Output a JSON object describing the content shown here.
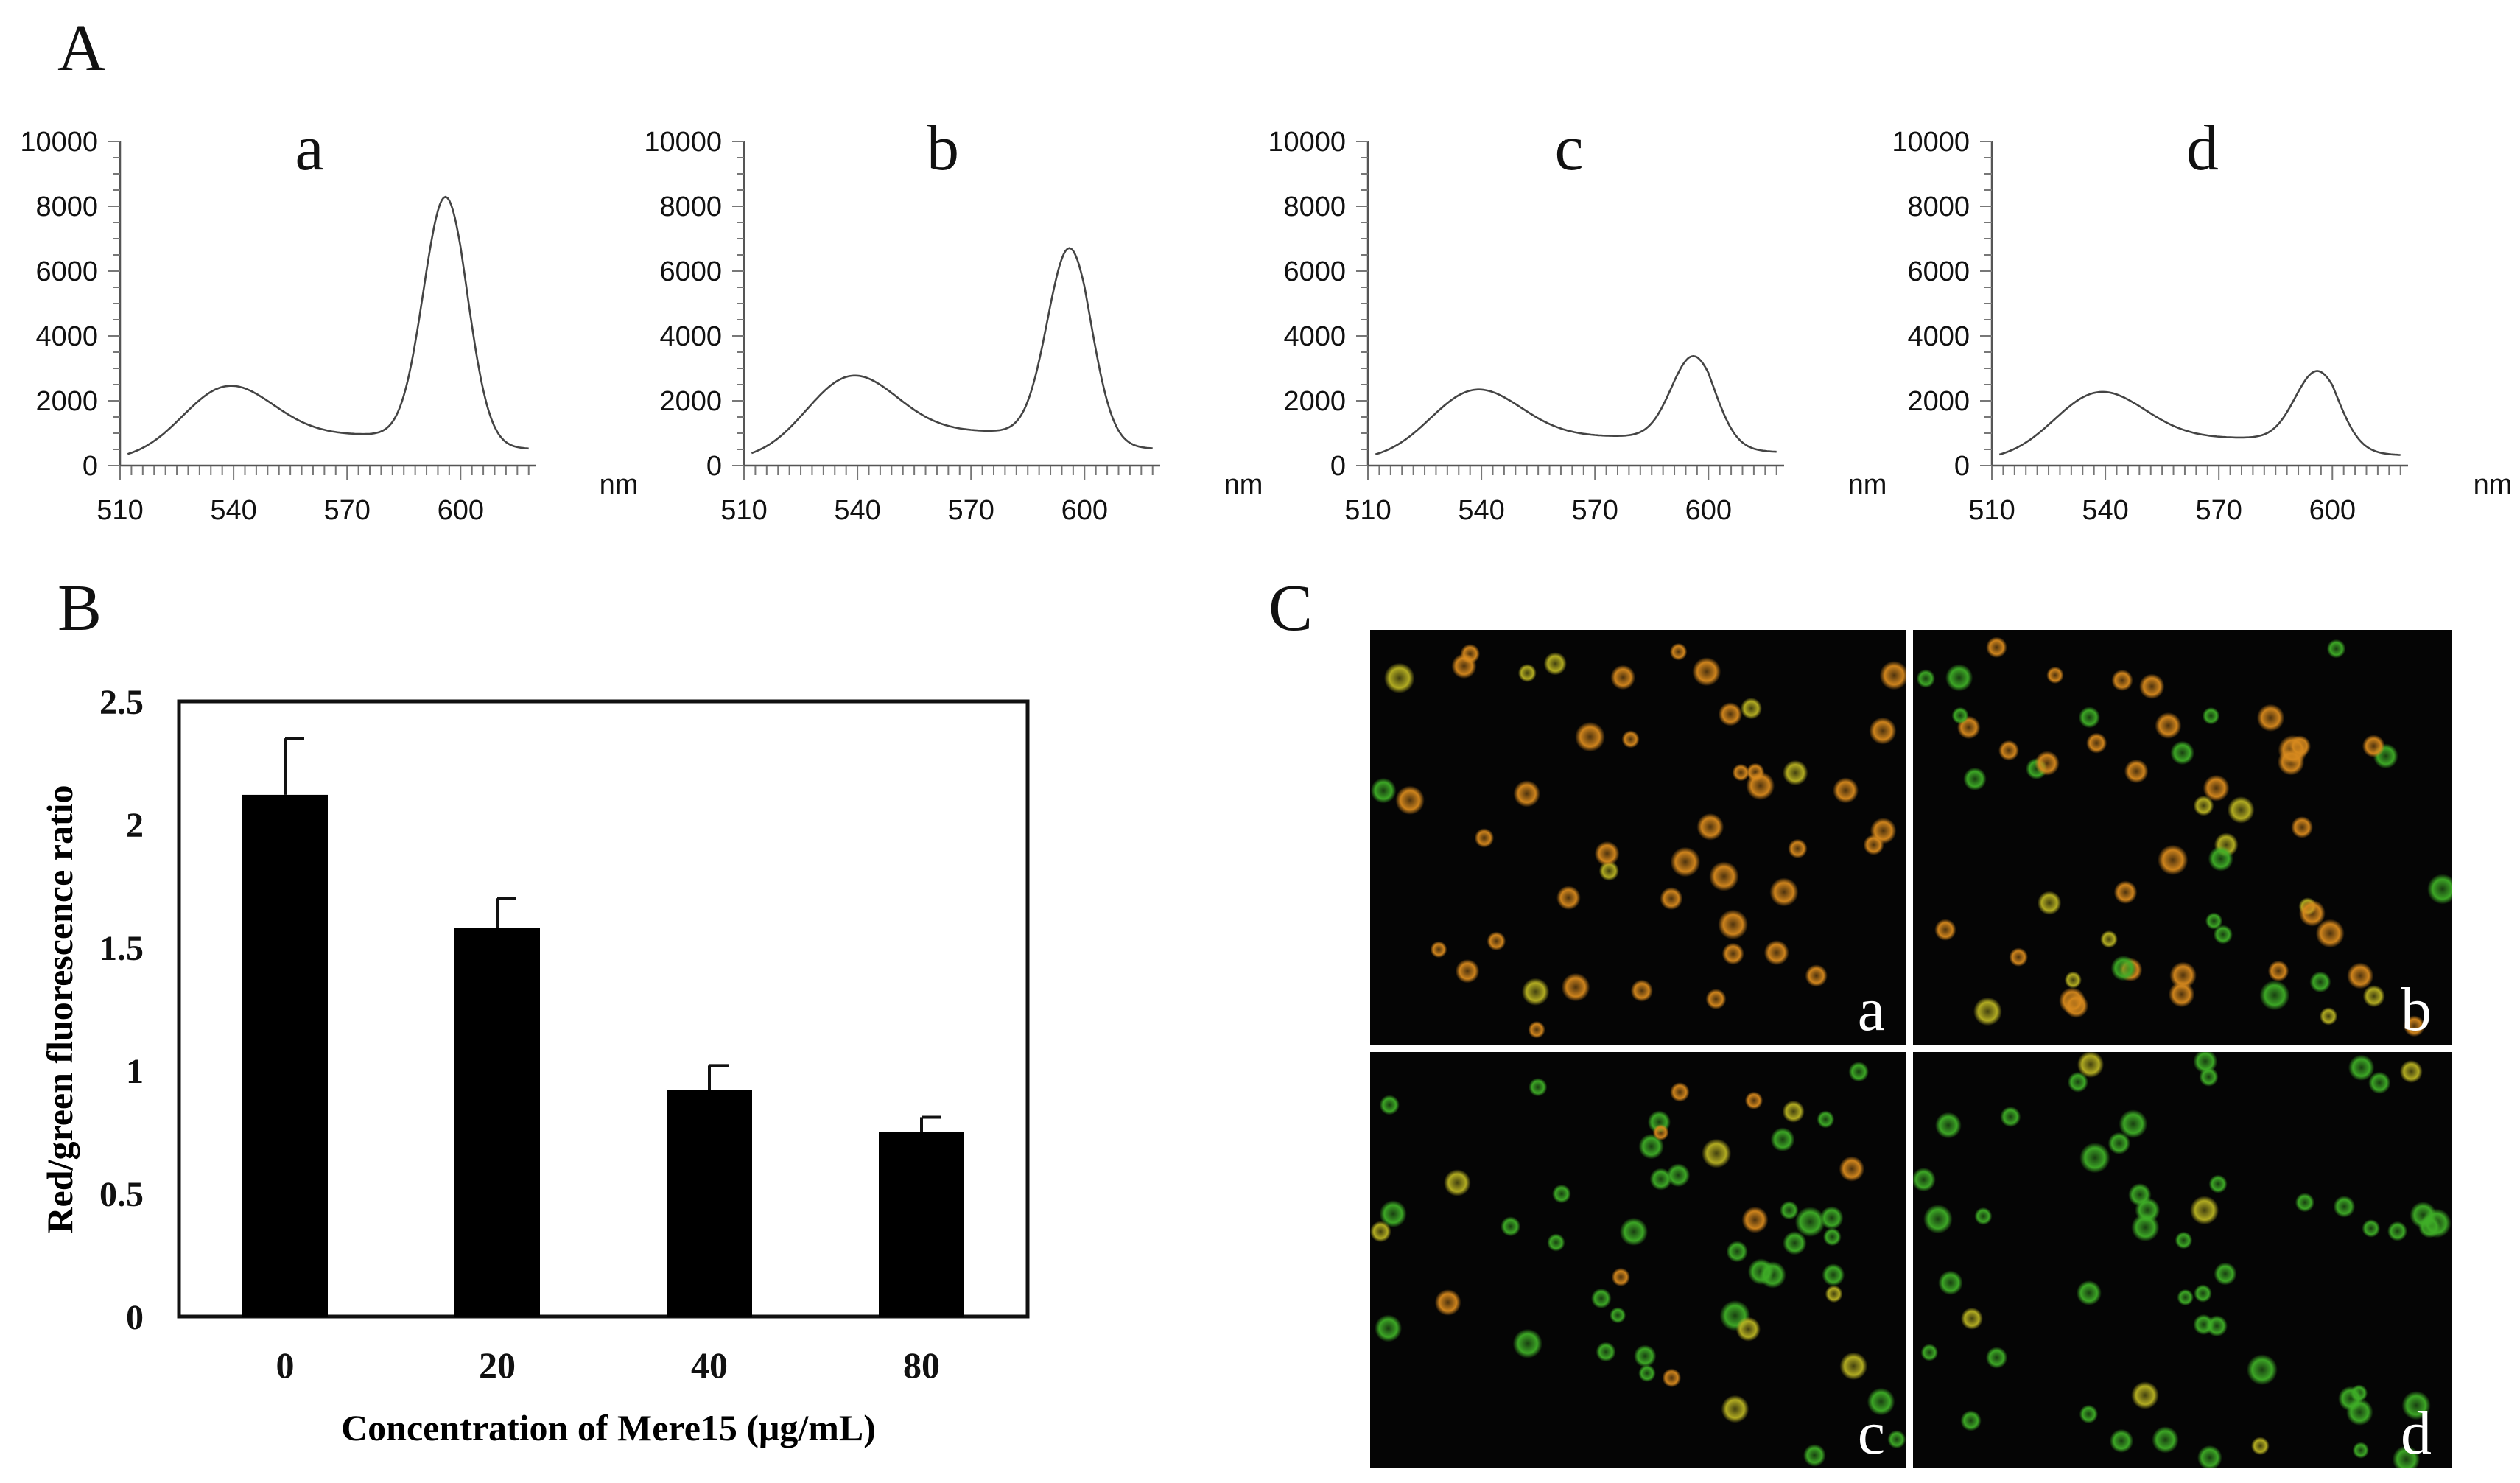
{
  "figure": {
    "panel_labels": [
      "A",
      "B",
      "C"
    ]
  },
  "colors": {
    "background": "#ffffff",
    "ink": "#111111",
    "bar_fill": "#000000",
    "micro_bg": "#050505",
    "cell_red_orange": "#d88a1e",
    "cell_green": "#3fae27",
    "cell_yellow": "#b9b323"
  },
  "chart_data": [
    {
      "id": "A-a",
      "type": "line",
      "title": "a",
      "xlabel": "nm",
      "ylabel": "",
      "xlim": [
        510,
        620
      ],
      "ylim": [
        0,
        10000
      ],
      "x_ticks": [
        "510",
        "540",
        "570",
        "600"
      ],
      "y_ticks": [
        "0",
        "2000",
        "4000",
        "6000",
        "8000",
        "10000"
      ],
      "peaks": {
        "green_peak_nm": 538,
        "green_peak_value": 2200,
        "red_peak_nm": 596,
        "red_peak_value": 8100,
        "valley_value": 950,
        "start_value": 150,
        "end_value": 500
      }
    },
    {
      "id": "A-b",
      "type": "line",
      "title": "b",
      "xlabel": "nm",
      "ylabel": "",
      "xlim": [
        510,
        620
      ],
      "ylim": [
        0,
        10000
      ],
      "x_ticks": [
        "510",
        "540",
        "570",
        "600"
      ],
      "y_ticks": [
        "0",
        "2000",
        "4000",
        "6000",
        "8000",
        "10000"
      ],
      "peaks": {
        "green_peak_nm": 538,
        "green_peak_value": 2500,
        "red_peak_nm": 596,
        "red_peak_value": 6500,
        "valley_value": 1050,
        "start_value": 150,
        "end_value": 500
      }
    },
    {
      "id": "A-c",
      "type": "line",
      "title": "c",
      "xlabel": "nm",
      "ylabel": "",
      "xlim": [
        510,
        620
      ],
      "ylim": [
        0,
        10000
      ],
      "x_ticks": [
        "510",
        "540",
        "570",
        "600"
      ],
      "y_ticks": [
        "0",
        "2000",
        "4000",
        "6000",
        "8000",
        "10000"
      ],
      "peaks": {
        "green_peak_nm": 538,
        "green_peak_value": 2100,
        "red_peak_nm": 596,
        "red_peak_value": 3200,
        "valley_value": 900,
        "start_value": 150,
        "end_value": 400
      }
    },
    {
      "id": "A-d",
      "type": "line",
      "title": "d",
      "xlabel": "nm",
      "ylabel": "",
      "xlim": [
        510,
        620
      ],
      "ylim": [
        0,
        10000
      ],
      "x_ticks": [
        "510",
        "540",
        "570",
        "600"
      ],
      "y_ticks": [
        "0",
        "2000",
        "4000",
        "6000",
        "8000",
        "10000"
      ],
      "peaks": {
        "green_peak_nm": 538,
        "green_peak_value": 2050,
        "red_peak_nm": 596,
        "red_peak_value": 2750,
        "valley_value": 850,
        "start_value": 150,
        "end_value": 300
      }
    },
    {
      "id": "B",
      "type": "bar",
      "title": "",
      "xlabel": "Concentration of Mere15 (μg/mL)",
      "ylabel": "Red/green fluorescence ratio",
      "categories": [
        "0",
        "20",
        "40",
        "80"
      ],
      "values": [
        2.12,
        1.58,
        0.92,
        0.75
      ],
      "errors": [
        0.23,
        0.12,
        0.1,
        0.06
      ],
      "ylim": [
        0,
        2.5
      ],
      "y_ticks": [
        "0",
        "0.5",
        "1",
        "1.5",
        "2",
        "2.5"
      ],
      "grid": false
    }
  ],
  "micrographs": {
    "labels": [
      "a",
      "b",
      "c",
      "d"
    ],
    "panels": [
      {
        "label": "a",
        "red_fraction": 0.8,
        "cells": 46,
        "seed": 11
      },
      {
        "label": "b",
        "red_fraction": 0.6,
        "cells": 58,
        "seed": 23
      },
      {
        "label": "c",
        "red_fraction": 0.22,
        "cells": 50,
        "seed": 37
      },
      {
        "label": "d",
        "red_fraction": 0.02,
        "cells": 52,
        "seed": 53
      }
    ]
  }
}
